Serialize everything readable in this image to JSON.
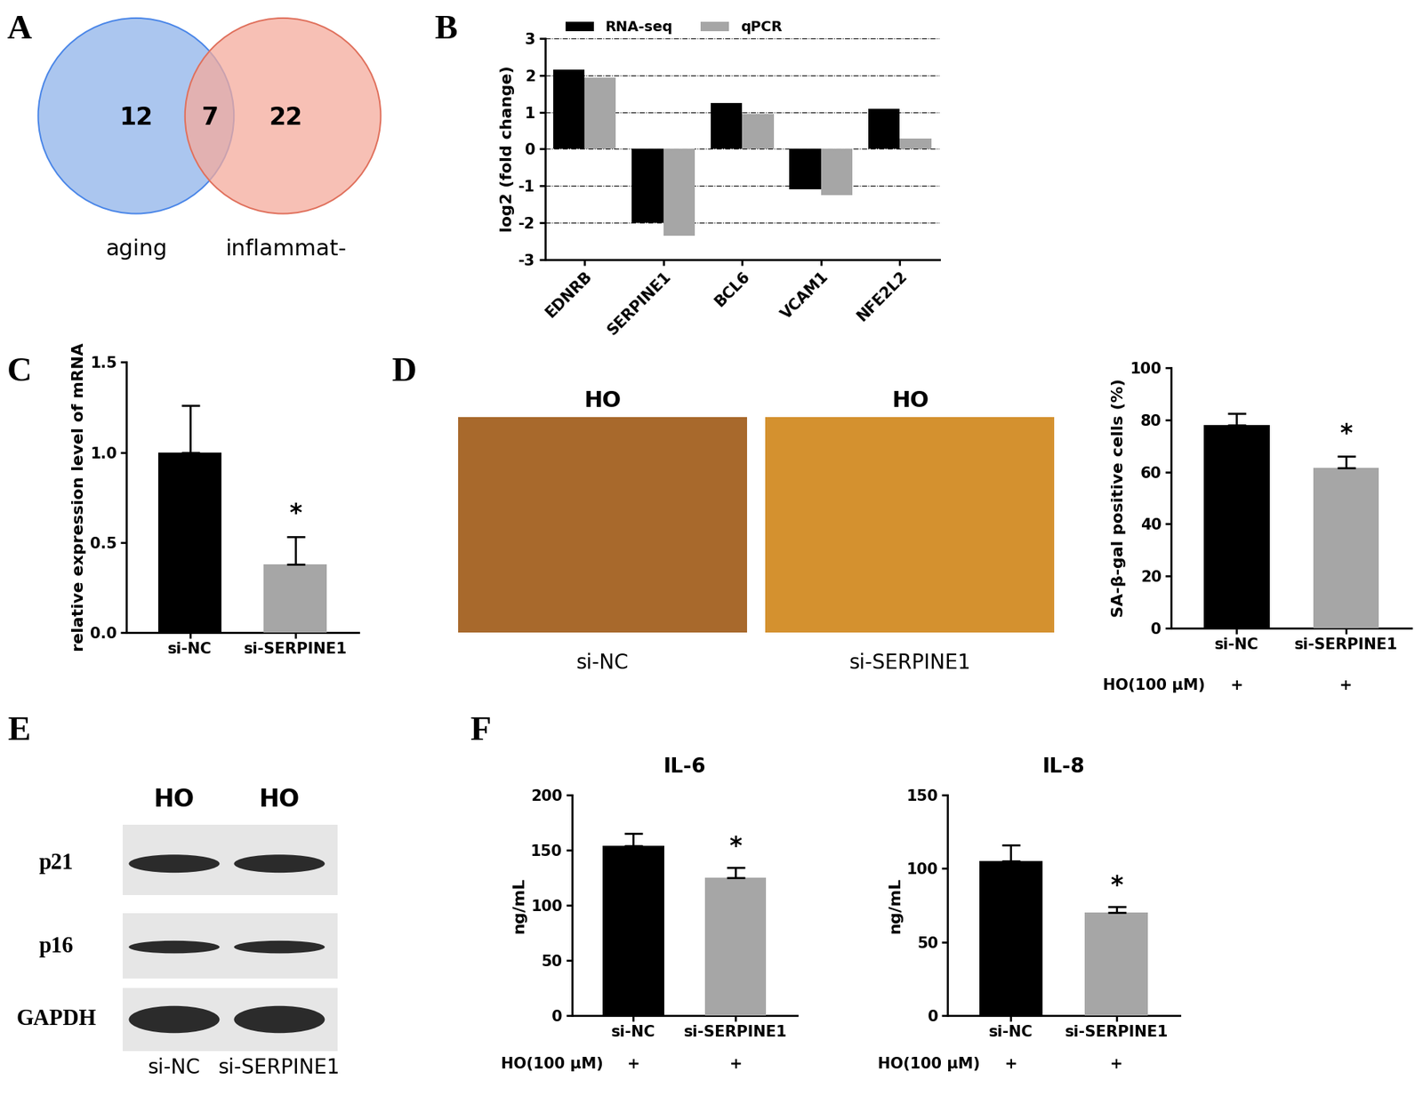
{
  "chart_data": [
    {
      "panel": "A",
      "type": "venn",
      "sets": [
        "aging",
        "inflammat-"
      ],
      "counts": [
        12,
        7,
        22
      ],
      "colors": [
        "#8fb4ea",
        "#f5ab9c"
      ]
    },
    {
      "panel": "B",
      "type": "bar",
      "categories": [
        "EDNRB",
        "SERPINE1",
        "BCL6",
        "VCAM1",
        "NFE2L2"
      ],
      "series": [
        {
          "name": "RNA-seq",
          "color": "#000000",
          "values": [
            2.15,
            -2.0,
            1.25,
            -1.1,
            1.1
          ]
        },
        {
          "name": "qPCR",
          "color": "#a6a6a6",
          "values": [
            1.95,
            -2.35,
            0.95,
            -1.25,
            0.28
          ]
        }
      ],
      "y_label": "log2 (fold change)",
      "ylim": [
        -3,
        3
      ],
      "yticks": [
        -3,
        -2,
        -1,
        0,
        1,
        2,
        3
      ],
      "grid": true,
      "legend": "upper left"
    },
    {
      "panel": "C",
      "type": "bar",
      "categories": [
        "si-NC",
        "si-SERPINE1"
      ],
      "values": [
        1.0,
        0.38
      ],
      "errors": [
        0.26,
        0.15
      ],
      "colors": [
        "#000000",
        "#a6a6a6"
      ],
      "significance": [
        null,
        "*"
      ],
      "y_label": "relative expression level of mRNA",
      "ylim": [
        0,
        1.5
      ],
      "yticks": [
        {
          "value": 0,
          "label": "0.0"
        },
        {
          "value": 0.5,
          "label": "0.5"
        },
        {
          "value": 1,
          "label": "1.0"
        },
        {
          "value": 1.5,
          "label": "1.5"
        }
      ]
    },
    {
      "type": "bar",
      "categories": [
        "si-NC",
        "si-SERPINE1"
      ],
      "values": [
        78,
        61.5
      ],
      "errors": [
        4.5,
        4.5
      ],
      "colors": [
        "#000000",
        "#a6a6a6"
      ],
      "significance": [
        null,
        "*"
      ],
      "y_label": "SA-β-gal positive cells (%)",
      "ylim": [
        0,
        100
      ],
      "yticks": [
        0,
        20,
        40,
        60,
        80,
        100
      ],
      "treatment_label": "HO(100 μM)",
      "treatment_marks": [
        "+",
        "+"
      ]
    },
    {
      "panel": "F",
      "type": "bar",
      "title": "IL-6",
      "categories": [
        "si-NC",
        "si-SERPINE1"
      ],
      "values": [
        154,
        125
      ],
      "errors": [
        11,
        9
      ],
      "colors": [
        "#000000",
        "#a6a6a6"
      ],
      "significance": [
        null,
        "*"
      ],
      "y_label": "ng/mL",
      "ylim": [
        0,
        200
      ],
      "yticks": [
        0,
        50,
        100,
        150,
        200
      ],
      "treatment_label": "HO(100 μM)",
      "treatment_marks": [
        "+",
        "+"
      ]
    },
    {
      "type": "bar",
      "title": "IL-8",
      "categories": [
        "si-NC",
        "si-SERPINE1"
      ],
      "values": [
        105,
        70
      ],
      "errors": [
        11,
        4
      ],
      "colors": [
        "#000000",
        "#a6a6a6"
      ],
      "significance": [
        null,
        "*"
      ],
      "y_label": "ng/mL",
      "ylim": [
        0,
        150
      ],
      "yticks": [
        0,
        50,
        100,
        150
      ],
      "treatment_label": "HO(100 μM)",
      "treatment_marks": [
        "+",
        "+"
      ]
    }
  ],
  "images": {
    "panel": "D",
    "titles": [
      "HO",
      "HO"
    ],
    "captions": [
      "si-NC",
      "si-SERPINE1"
    ]
  },
  "blot": {
    "panel": "E",
    "header": [
      "HO",
      "HO"
    ],
    "rows": [
      "p21",
      "p16",
      "GAPDH"
    ],
    "lanes": [
      "si-NC",
      "si-SERPINE1"
    ]
  }
}
